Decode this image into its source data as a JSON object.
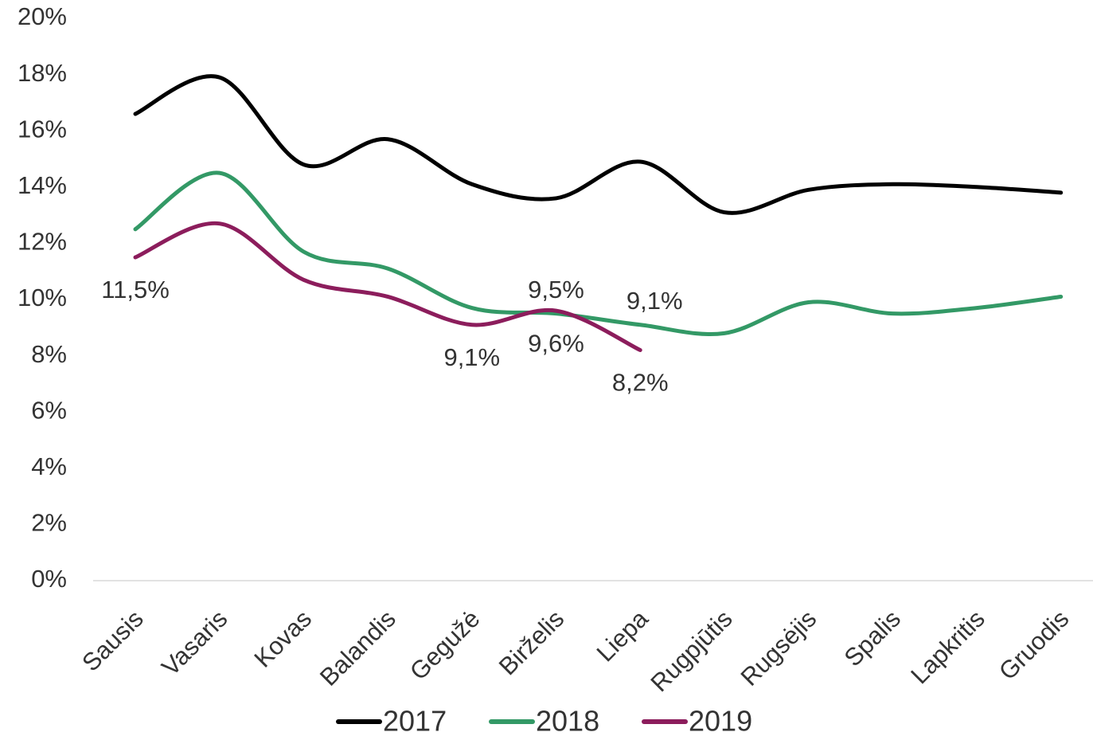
{
  "chart_data": {
    "type": "line",
    "categories": [
      "Sausis",
      "Vasaris",
      "Kovas",
      "Balandis",
      "Gegužė",
      "Birželis",
      "Liepa",
      "Rugpjūtis",
      "Rugsėjis",
      "Spalis",
      "Lapkritis",
      "Gruodis"
    ],
    "series": [
      {
        "name": "2017",
        "color": "#000000",
        "values": [
          16.6,
          17.9,
          14.8,
          15.7,
          14.1,
          13.6,
          14.9,
          13.1,
          13.9,
          14.1,
          14.0,
          13.8
        ]
      },
      {
        "name": "2018",
        "color": "#339966",
        "values": [
          12.5,
          14.5,
          11.7,
          11.1,
          9.7,
          9.5,
          9.1,
          8.8,
          9.9,
          9.5,
          9.7,
          10.1
        ],
        "value_labels": [
          null,
          null,
          null,
          null,
          null,
          "9,5%",
          "9,1%",
          null,
          null,
          null,
          null,
          null
        ]
      },
      {
        "name": "2019",
        "color": "#8c1d5c",
        "values": [
          11.5,
          12.7,
          10.7,
          10.1,
          9.1,
          9.6,
          8.2,
          null,
          null,
          null,
          null,
          null
        ],
        "value_labels": [
          "11,5%",
          null,
          null,
          null,
          "9,1%",
          "9,6%",
          "8,2%",
          null,
          null,
          null,
          null,
          null
        ]
      }
    ],
    "ylim": [
      0,
      20
    ],
    "yticks": [
      {
        "value": 0,
        "label": "0%"
      },
      {
        "value": 2,
        "label": "2%"
      },
      {
        "value": 4,
        "label": "4%"
      },
      {
        "value": 6,
        "label": "6%"
      },
      {
        "value": 8,
        "label": "8%"
      },
      {
        "value": 10,
        "label": "10%"
      },
      {
        "value": 12,
        "label": "12%"
      },
      {
        "value": 14,
        "label": "14%"
      },
      {
        "value": 16,
        "label": "16%"
      },
      {
        "value": 18,
        "label": "18%"
      },
      {
        "value": 20,
        "label": "20%"
      }
    ],
    "legend": "bottom",
    "smooth": true
  }
}
